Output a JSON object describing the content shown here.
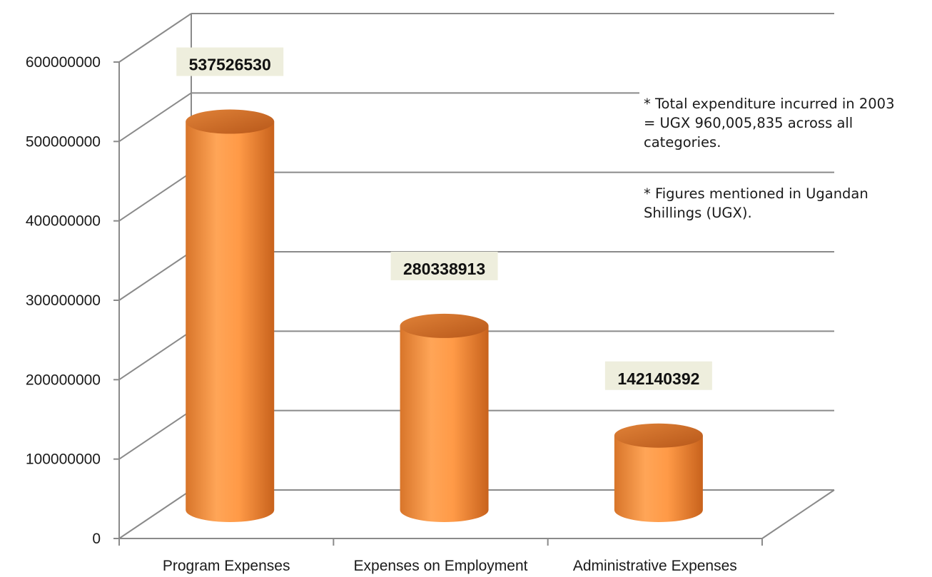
{
  "chart_data": {
    "type": "bar",
    "style": "3d-cylinder",
    "categories": [
      "Program Expenses",
      "Expenses on Employment",
      "Administrative Expenses"
    ],
    "values": [
      537526530,
      280338913,
      142140392
    ],
    "data_labels": [
      "537526530",
      "280338913",
      "142140392"
    ],
    "yticks": [
      "0",
      "100000000",
      "200000000",
      "300000000",
      "400000000",
      "500000000",
      "600000000"
    ],
    "ylim": [
      0,
      600000000
    ],
    "grid": true,
    "legend": "none",
    "title": "",
    "xlabel": "",
    "ylabel": ""
  },
  "notes": [
    "* Total expenditure incurred in 2003 = UGX 960,005,835 across all categories.",
    "* Figures mentioned in Ugandan Shillings (UGX)."
  ],
  "colors": {
    "bar_light": "#ffa04f",
    "bar_dark": "#c2621c",
    "bar_top": "#d9782f",
    "grid": "#8a8a8a",
    "label_box": "#eeeedd"
  }
}
